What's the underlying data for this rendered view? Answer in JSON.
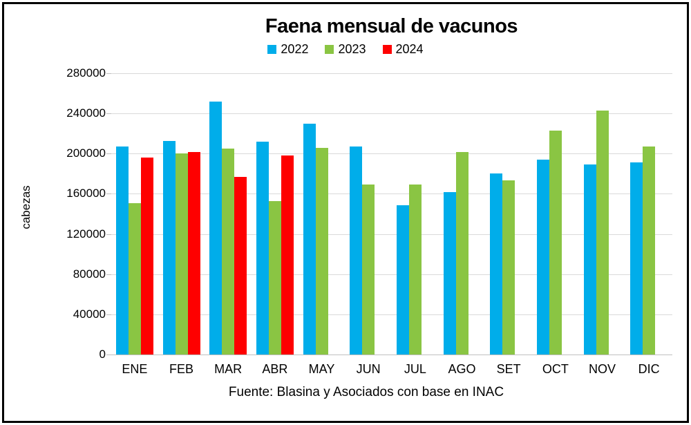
{
  "chart_data": {
    "type": "bar",
    "title": "Faena mensual de vacunos",
    "ylabel": "cabezas",
    "xlabel": "",
    "source": "Fuente: Blasina y Asociados con base en INAC",
    "categories": [
      "ENE",
      "FEB",
      "MAR",
      "ABR",
      "MAY",
      "JUN",
      "JUL",
      "AGO",
      "SET",
      "OCT",
      "NOV",
      "DIC"
    ],
    "series": [
      {
        "name": "2022",
        "color": "#00ADEA",
        "values": [
          207000,
          212500,
          252000,
          212000,
          229500,
          207000,
          148500,
          162000,
          180500,
          194000,
          189500,
          191500
        ]
      },
      {
        "name": "2023",
        "color": "#8AC543",
        "values": [
          150500,
          200500,
          205000,
          152500,
          206000,
          169500,
          169000,
          201500,
          173500,
          223000,
          243000,
          207000
        ]
      },
      {
        "name": "2024",
        "color": "#FE0000",
        "values": [
          196000,
          201500,
          177000,
          198000,
          null,
          null,
          null,
          null,
          null,
          null,
          null,
          null
        ]
      }
    ],
    "ylim": [
      0,
      280000
    ],
    "y_ticks": [
      0,
      40000,
      80000,
      120000,
      160000,
      200000,
      240000,
      280000
    ],
    "grid": true,
    "legend_position": "top"
  },
  "colors": {
    "gridline": "#D9D9D9",
    "axis": "#BFBFBF",
    "text": "#000000",
    "border": "#000000",
    "background": "#FFFFFF"
  }
}
